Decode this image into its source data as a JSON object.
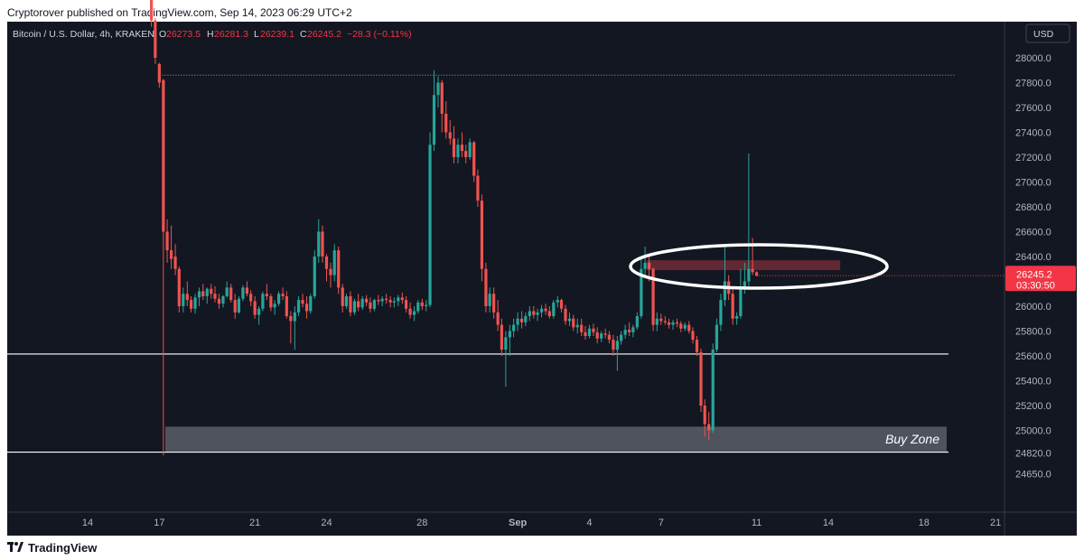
{
  "header": {
    "publisher_line": "Cryptorover published on TradingView.com, Sep 14, 2023 06:29 UTC+2"
  },
  "footer": {
    "brand": "TradingView",
    "logo_icon": "tradingview-logo-icon"
  },
  "chart_data": {
    "type": "candlestick",
    "symbol_line": {
      "name": "Bitcoin / U.S. Dollar, 4h, KRAKEN",
      "o_label": "O",
      "o_value": "26273.5",
      "h_label": "H",
      "h_value": "26281.3",
      "l_label": "L",
      "l_value": "26239.1",
      "c_label": "C",
      "c_value": "26245.2",
      "change": "−28.3 (−0.11%)"
    },
    "currency": "USD",
    "y_ticks": [
      28000,
      27800,
      27600,
      27400,
      27200,
      27000,
      26800,
      26600,
      26400,
      26200,
      26000,
      25800,
      25600,
      25400,
      25200,
      25000,
      24820,
      24650
    ],
    "y_tick_labels": [
      "28000.0",
      "27800.0",
      "27600.0",
      "27400.0",
      "27200.0",
      "27000.0",
      "26800.0",
      "26600.0",
      "26400.0",
      "26200.0",
      "26000.0",
      "25800.0",
      "25600.0",
      "25400.0",
      "25200.0",
      "25000.0",
      "24820.0",
      "24650.0"
    ],
    "x_tick_labels": [
      {
        "label": "14",
        "day": 14
      },
      {
        "label": "17",
        "day": 17
      },
      {
        "label": "21",
        "day": 21
      },
      {
        "label": "24",
        "day": 24
      },
      {
        "label": "28",
        "day": 28
      },
      {
        "label": "Sep",
        "day": 32
      },
      {
        "label": "4",
        "day": 35
      },
      {
        "label": "7",
        "day": 38
      },
      {
        "label": "11",
        "day": 42
      },
      {
        "label": "14",
        "day": 45
      },
      {
        "label": "18",
        "day": 49
      },
      {
        "label": "21",
        "day": 52
      }
    ],
    "last_price": {
      "value": 26245.2,
      "label": "26245.2",
      "countdown": "03:30:50",
      "color": "#f23645"
    },
    "candles": [
      [
        16.67,
        28700,
        28750,
        28250,
        28300
      ],
      [
        16.83,
        28300,
        28320,
        27950,
        28000
      ],
      [
        17.0,
        27950,
        27960,
        27760,
        27800
      ],
      [
        17.17,
        27820,
        27830,
        24800,
        26600
      ],
      [
        17.33,
        26600,
        26700,
        26350,
        26450
      ],
      [
        17.5,
        26450,
        26650,
        26300,
        26380
      ],
      [
        17.67,
        26400,
        26500,
        26250,
        26300
      ],
      [
        17.83,
        26300,
        26320,
        25950,
        26000
      ],
      [
        18.0,
        26000,
        26150,
        25950,
        26100
      ],
      [
        18.17,
        26100,
        26200,
        26000,
        26050
      ],
      [
        18.33,
        26050,
        26080,
        25950,
        25980
      ],
      [
        18.5,
        25980,
        26100,
        25940,
        26070
      ],
      [
        18.67,
        26070,
        26150,
        26000,
        26120
      ],
      [
        18.83,
        26120,
        26180,
        26050,
        26080
      ],
      [
        19.0,
        26080,
        26150,
        26020,
        26140
      ],
      [
        19.17,
        26140,
        26180,
        26060,
        26100
      ],
      [
        19.33,
        26100,
        26160,
        26030,
        26060
      ],
      [
        19.5,
        26060,
        26100,
        25980,
        26020
      ],
      [
        19.67,
        26020,
        26090,
        25990,
        26080
      ],
      [
        19.83,
        26080,
        26200,
        26070,
        26150
      ],
      [
        20.0,
        26150,
        26180,
        26030,
        26050
      ],
      [
        20.17,
        26050,
        26100,
        25900,
        25950
      ],
      [
        20.33,
        25950,
        26080,
        25940,
        26060
      ],
      [
        20.5,
        26060,
        26170,
        26040,
        26150
      ],
      [
        20.67,
        26150,
        26200,
        26080,
        26100
      ],
      [
        20.83,
        26100,
        26130,
        26000,
        26040
      ],
      [
        21.0,
        26040,
        26080,
        25900,
        25930
      ],
      [
        21.17,
        25930,
        26000,
        25850,
        25980
      ],
      [
        21.33,
        25980,
        26120,
        25960,
        26100
      ],
      [
        21.5,
        26100,
        26180,
        26050,
        26080
      ],
      [
        21.67,
        26080,
        26100,
        25960,
        25990
      ],
      [
        21.83,
        25990,
        26050,
        25930,
        26020
      ],
      [
        22.0,
        26020,
        26120,
        26000,
        26100
      ],
      [
        22.17,
        26100,
        26150,
        26050,
        26080
      ],
      [
        22.33,
        26080,
        26120,
        25900,
        25920
      ],
      [
        22.5,
        25920,
        25960,
        25700,
        25880
      ],
      [
        22.67,
        25880,
        26000,
        25650,
        25950
      ],
      [
        22.83,
        25950,
        26080,
        25920,
        26050
      ],
      [
        23.0,
        26050,
        26100,
        25990,
        26020
      ],
      [
        23.17,
        26020,
        26080,
        25900,
        25960
      ],
      [
        23.33,
        25960,
        26100,
        25940,
        26080
      ],
      [
        23.5,
        26080,
        26450,
        26060,
        26400
      ],
      [
        23.67,
        26400,
        26700,
        26350,
        26600
      ],
      [
        23.83,
        26600,
        26650,
        26350,
        26400
      ],
      [
        24.0,
        26400,
        26420,
        26200,
        26300
      ],
      [
        24.17,
        26300,
        26350,
        26150,
        26250
      ],
      [
        24.33,
        26250,
        26500,
        26200,
        26450
      ],
      [
        24.5,
        26450,
        26480,
        26100,
        26150
      ],
      [
        24.67,
        26150,
        26180,
        25950,
        26000
      ],
      [
        24.83,
        26000,
        26100,
        25980,
        26080
      ],
      [
        25.0,
        26080,
        26120,
        25920,
        25950
      ],
      [
        25.17,
        25950,
        26060,
        25930,
        26040
      ],
      [
        25.33,
        26040,
        26100,
        25960,
        25990
      ],
      [
        25.5,
        25990,
        26080,
        25970,
        26060
      ],
      [
        25.67,
        26060,
        26090,
        26000,
        26030
      ],
      [
        25.83,
        26030,
        26070,
        25950,
        25980
      ],
      [
        26.0,
        25980,
        26060,
        25960,
        26050
      ],
      [
        26.17,
        26050,
        26090,
        26010,
        26040
      ],
      [
        26.33,
        26040,
        26080,
        26000,
        26060
      ],
      [
        26.5,
        26060,
        26100,
        26020,
        26050
      ],
      [
        26.67,
        26050,
        26080,
        25990,
        26030
      ],
      [
        26.83,
        26030,
        26070,
        25990,
        26040
      ],
      [
        27.0,
        26040,
        26090,
        26000,
        26070
      ],
      [
        27.17,
        26070,
        26110,
        26020,
        26050
      ],
      [
        27.33,
        26050,
        26080,
        25950,
        25980
      ],
      [
        27.5,
        25980,
        26030,
        25900,
        25930
      ],
      [
        27.67,
        25930,
        26000,
        25880,
        25960
      ],
      [
        27.83,
        25960,
        26050,
        25940,
        26030
      ],
      [
        28.0,
        26030,
        26060,
        25970,
        26000
      ],
      [
        28.17,
        26000,
        26050,
        25960,
        26010
      ],
      [
        28.33,
        26010,
        27400,
        25990,
        27300
      ],
      [
        28.5,
        27300,
        27900,
        27250,
        27700
      ],
      [
        28.67,
        27700,
        27850,
        27600,
        27800
      ],
      [
        28.83,
        27800,
        27820,
        27400,
        27550
      ],
      [
        29.0,
        27550,
        27650,
        27350,
        27400
      ],
      [
        29.17,
        27400,
        27500,
        27300,
        27350
      ],
      [
        29.33,
        27350,
        27450,
        27150,
        27200
      ],
      [
        29.5,
        27200,
        27350,
        27150,
        27300
      ],
      [
        29.67,
        27300,
        27400,
        27200,
        27250
      ],
      [
        29.83,
        27250,
        27300,
        27150,
        27200
      ],
      [
        30.0,
        27200,
        27350,
        27180,
        27320
      ],
      [
        30.17,
        27320,
        27330,
        27000,
        27050
      ],
      [
        30.33,
        27050,
        27100,
        26800,
        26850
      ],
      [
        30.5,
        26850,
        26900,
        26200,
        26300
      ],
      [
        30.67,
        26300,
        26350,
        25950,
        26000
      ],
      [
        30.83,
        26000,
        26150,
        25950,
        26100
      ],
      [
        31.0,
        26100,
        26150,
        25900,
        25950
      ],
      [
        31.17,
        25950,
        26050,
        25800,
        25850
      ],
      [
        31.33,
        25850,
        25900,
        25600,
        25650
      ],
      [
        31.5,
        25650,
        25800,
        25350,
        25750
      ],
      [
        31.67,
        25750,
        25850,
        25600,
        25800
      ],
      [
        31.83,
        25800,
        25900,
        25750,
        25850
      ],
      [
        32.0,
        25850,
        25950,
        25800,
        25900
      ],
      [
        32.17,
        25900,
        25960,
        25820,
        25870
      ],
      [
        32.33,
        25870,
        25950,
        25840,
        25920
      ],
      [
        32.5,
        25920,
        26000,
        25880,
        25960
      ],
      [
        32.67,
        25960,
        26000,
        25900,
        25930
      ],
      [
        32.83,
        25930,
        25980,
        25880,
        25950
      ],
      [
        33.0,
        25950,
        26010,
        25910,
        25980
      ],
      [
        33.17,
        25980,
        26020,
        25930,
        25960
      ],
      [
        33.33,
        25960,
        26000,
        25900,
        25920
      ],
      [
        33.5,
        25920,
        26050,
        25900,
        26030
      ],
      [
        33.67,
        26030,
        26080,
        25990,
        26050
      ],
      [
        33.83,
        26050,
        26060,
        25950,
        25980
      ],
      [
        34.0,
        25980,
        26010,
        25850,
        25880
      ],
      [
        34.17,
        25880,
        25950,
        25840,
        25900
      ],
      [
        34.33,
        25900,
        25930,
        25800,
        25830
      ],
      [
        34.5,
        25830,
        25900,
        25780,
        25850
      ],
      [
        34.67,
        25850,
        25900,
        25760,
        25790
      ],
      [
        34.83,
        25790,
        25840,
        25730,
        25760
      ],
      [
        35.0,
        25760,
        25850,
        25740,
        25820
      ],
      [
        35.17,
        25820,
        25860,
        25760,
        25790
      ],
      [
        35.33,
        25790,
        25830,
        25700,
        25740
      ],
      [
        35.5,
        25740,
        25800,
        25710,
        25780
      ],
      [
        35.67,
        25780,
        25820,
        25740,
        25770
      ],
      [
        35.83,
        25770,
        25800,
        25700,
        25730
      ],
      [
        36.0,
        25730,
        25770,
        25600,
        25650
      ],
      [
        36.17,
        25650,
        25760,
        25480,
        25720
      ],
      [
        36.33,
        25720,
        25800,
        25690,
        25770
      ],
      [
        36.5,
        25770,
        25850,
        25740,
        25810
      ],
      [
        36.67,
        25810,
        25870,
        25760,
        25790
      ],
      [
        36.83,
        25790,
        25850,
        25750,
        25830
      ],
      [
        37.0,
        25830,
        25950,
        25810,
        25920
      ],
      [
        37.17,
        25920,
        26380,
        25900,
        26300
      ],
      [
        37.33,
        26300,
        26480,
        26250,
        26350
      ],
      [
        37.5,
        26350,
        26400,
        26200,
        26300
      ],
      [
        37.67,
        26300,
        26310,
        25800,
        25850
      ],
      [
        37.83,
        25850,
        25950,
        25800,
        25900
      ],
      [
        38.0,
        25900,
        25940,
        25850,
        25880
      ],
      [
        38.17,
        25880,
        25920,
        25850,
        25870
      ],
      [
        38.33,
        25870,
        25900,
        25820,
        25850
      ],
      [
        38.5,
        25850,
        25890,
        25810,
        25870
      ],
      [
        38.67,
        25870,
        25900,
        25830,
        25860
      ],
      [
        38.83,
        25860,
        25880,
        25790,
        25820
      ],
      [
        39.0,
        25820,
        25870,
        25800,
        25850
      ],
      [
        39.17,
        25850,
        25880,
        25780,
        25800
      ],
      [
        39.33,
        25800,
        25830,
        25700,
        25730
      ],
      [
        39.5,
        25730,
        25760,
        25600,
        25630
      ],
      [
        39.67,
        25630,
        25660,
        25150,
        25200
      ],
      [
        39.83,
        25200,
        25250,
        24950,
        25050
      ],
      [
        40.0,
        25050,
        25150,
        24920,
        25000
      ],
      [
        40.17,
        25000,
        25700,
        24980,
        25650
      ],
      [
        40.33,
        25650,
        25900,
        25630,
        25850
      ],
      [
        40.5,
        25850,
        26100,
        25800,
        26050
      ],
      [
        40.67,
        26050,
        26500,
        26000,
        26200
      ],
      [
        40.83,
        26200,
        26250,
        26050,
        26100
      ],
      [
        41.0,
        26100,
        26150,
        25850,
        25900
      ],
      [
        41.17,
        25900,
        25950,
        25850,
        25920
      ],
      [
        41.33,
        25920,
        26300,
        25900,
        26150
      ],
      [
        41.5,
        26150,
        26350,
        26100,
        26200
      ],
      [
        41.67,
        26200,
        27230,
        26150,
        26300
      ],
      [
        41.83,
        26300,
        26550,
        26250,
        26273.5
      ],
      [
        42.0,
        26273.5,
        26281.3,
        26239.1,
        26245.2
      ]
    ],
    "levels": [
      {
        "price": 25615,
        "color": "#ffffff",
        "style": "solid"
      },
      {
        "price": 24825,
        "color": "#ffffff",
        "style": "solid"
      },
      {
        "price": 27860,
        "color": "#888888",
        "style": "dotted"
      }
    ],
    "zones": [
      {
        "label": "Buy Zone",
        "price_top": 25030,
        "price_bottom": 24830,
        "color": "#5a5e69"
      },
      {
        "label": "",
        "price_top": 26370,
        "price_bottom": 26290,
        "color": "#6b2a35"
      }
    ],
    "colors": {
      "background": "#131722",
      "up": "#26a69a",
      "down": "#ef5350",
      "axis_text": "#b2b5be",
      "grid": "#2a2e39"
    }
  }
}
